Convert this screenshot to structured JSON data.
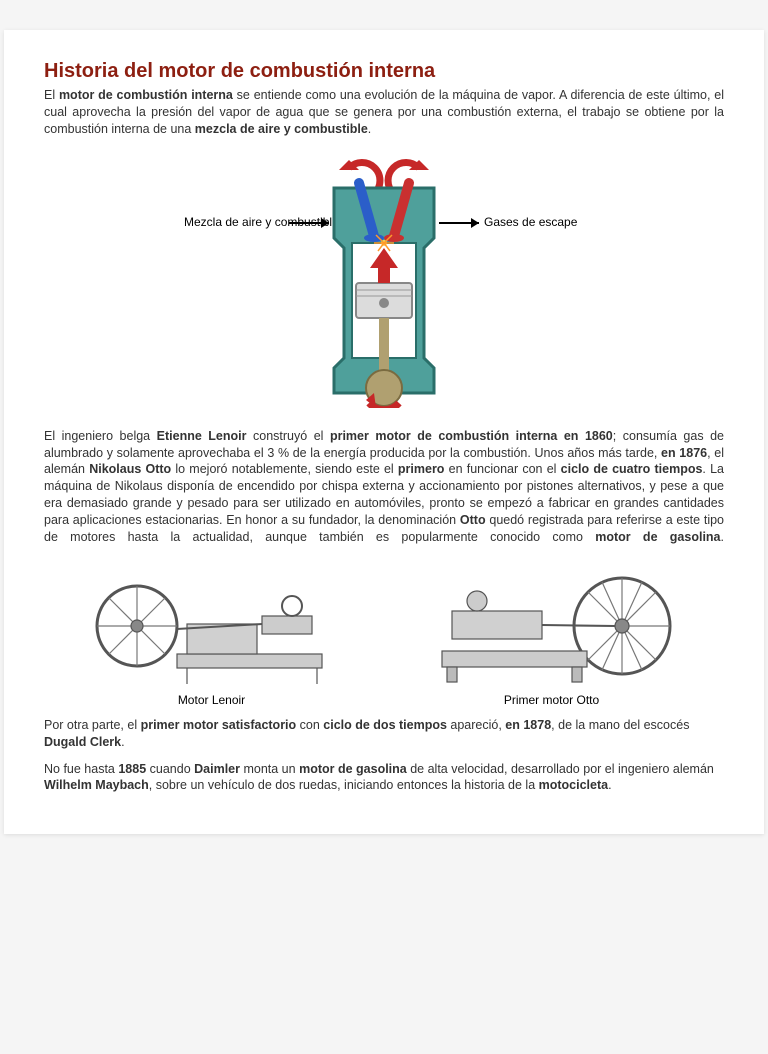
{
  "title": "Historia del motor de combustión interna",
  "p1_a": "El ",
  "p1_b": "motor de combustión interna",
  "p1_c": " se entiende como una evolución de la máquina de vapor. A diferencia de este último, el cual aprovecha la presión del vapor de agua que se genera por una combustión externa, el trabajo se obtiene por la combustión interna de una ",
  "p1_d": "mezcla de aire y combustible",
  "p1_e": ".",
  "diagram": {
    "left_label": "Mezcla de aire y combustible",
    "right_label": "Gases de escape",
    "colors": {
      "body": "#4fa09b",
      "body_stroke": "#2a6e69",
      "valve_left": "#2b5ec9",
      "valve_right": "#c93030",
      "piston": "#dcdcdc",
      "arrow": "#c62828",
      "spark": "#ff9a2a"
    }
  },
  "p2_parts": [
    {
      "t": "El ingeniero belga ",
      "b": false
    },
    {
      "t": "Etienne Lenoir",
      "b": true
    },
    {
      "t": " construyó el ",
      "b": false
    },
    {
      "t": "primer motor de combustión interna en 1860",
      "b": true
    },
    {
      "t": "; consumía gas de alumbrado y solamente aprovechaba el 3 % de la energía producida por la combustión. Unos años más tarde, ",
      "b": false
    },
    {
      "t": "en 1876",
      "b": true
    },
    {
      "t": ", el alemán ",
      "b": false
    },
    {
      "t": "Nikolaus Otto",
      "b": true
    },
    {
      "t": " lo mejoró notablemente, siendo este el ",
      "b": false
    },
    {
      "t": "primero",
      "b": true
    },
    {
      "t": " en funcionar con el ",
      "b": false
    },
    {
      "t": "ciclo de cuatro tiempos",
      "b": true
    },
    {
      "t": ". La máquina de Nikolaus disponía de encendido por chispa externa y accionamiento por pistones alternativos, y pese a que era demasiado grande y pesado para ser utilizado en automóviles, pronto se empezó a fabricar en grandes cantidades para aplicaciones estacionarias. En honor a su fundador, la denominación ",
      "b": false
    },
    {
      "t": "Otto",
      "b": true
    },
    {
      "t": " quedó registrada para referirse a este tipo de motores hasta la actualidad, aunque también es popularmente conocido como ",
      "b": false
    },
    {
      "t": "motor de gasolina",
      "b": true
    },
    {
      "t": ".",
      "b": false
    }
  ],
  "caption_left": "Motor Lenoir",
  "caption_right": "Primer motor Otto",
  "p3_parts": [
    {
      "t": "Por otra parte, el ",
      "b": false
    },
    {
      "t": "primer motor satisfactorio",
      "b": true
    },
    {
      "t": " con ",
      "b": false
    },
    {
      "t": "ciclo de dos tiempos",
      "b": true
    },
    {
      "t": " apareció, ",
      "b": false
    },
    {
      "t": "en 1878",
      "b": true
    },
    {
      "t": ", de la mano del escocés ",
      "b": false
    },
    {
      "t": "Dugald Clerk",
      "b": true
    },
    {
      "t": ".",
      "b": false
    }
  ],
  "p4_parts": [
    {
      "t": "No fue hasta ",
      "b": false
    },
    {
      "t": "1885",
      "b": true
    },
    {
      "t": " cuando ",
      "b": false
    },
    {
      "t": "Daimler",
      "b": true
    },
    {
      "t": " monta un ",
      "b": false
    },
    {
      "t": "motor de gasolina",
      "b": true
    },
    {
      "t": " de alta velocidad, desarrollado por el ingeniero alemán ",
      "b": false
    },
    {
      "t": "Wilhelm Maybach",
      "b": true
    },
    {
      "t": ", sobre un vehículo de dos ruedas, iniciando entonces la historia de la ",
      "b": false
    },
    {
      "t": "motocicleta",
      "b": true
    },
    {
      "t": ".",
      "b": false
    }
  ]
}
